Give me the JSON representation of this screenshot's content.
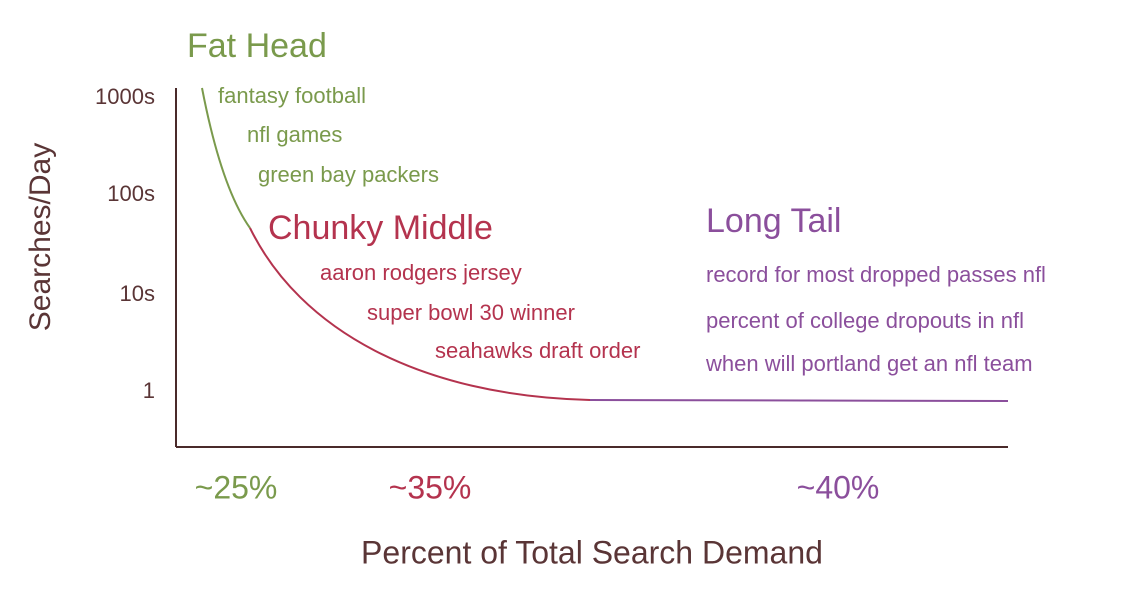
{
  "y_axis": {
    "label": "Searches/Day",
    "ticks": [
      "1000s",
      "100s",
      "10s",
      "1"
    ]
  },
  "x_axis": {
    "label": "Percent of Total Search Demand"
  },
  "segments": [
    {
      "title": "Fat Head",
      "share": "~25%",
      "terms": [
        "fantasy football",
        "nfl games",
        "green bay packers"
      ]
    },
    {
      "title": "Chunky Middle",
      "share": "~35%",
      "terms": [
        "aaron rodgers jersey",
        "super bowl 30 winner",
        "seahawks draft order"
      ]
    },
    {
      "title": "Long Tail",
      "share": "~40%",
      "terms": [
        "record for most dropped passes nfl",
        "percent of college dropouts in nfl",
        "when will portland get an nfl team"
      ]
    }
  ]
}
